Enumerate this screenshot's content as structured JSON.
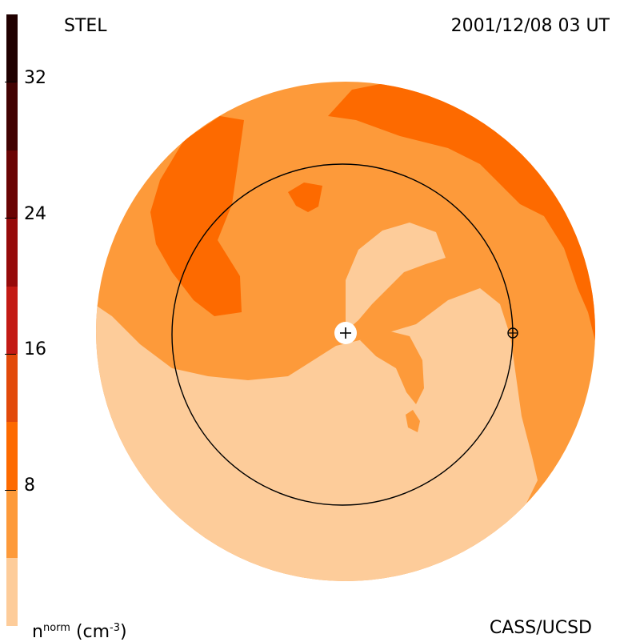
{
  "header": {
    "source": "STEL",
    "datetime": "2001/12/08 03 UT"
  },
  "footer": {
    "credit": "CASS/UCSD",
    "unit": {
      "base": "n",
      "superscript": "norm",
      "unit_text": "(cm",
      "unit_exp": "-3",
      "unit_close": ")"
    }
  },
  "colorbar": {
    "scale_min": 0,
    "scale_max": 36,
    "levels": [
      {
        "from": 0,
        "to": 4,
        "color": "#fdcc9a"
      },
      {
        "from": 4,
        "to": 8,
        "color": "#fd9a3a"
      },
      {
        "from": 8,
        "to": 12,
        "color": "#fd6a00"
      },
      {
        "from": 12,
        "to": 16,
        "color": "#e24a0a"
      },
      {
        "from": 16,
        "to": 20,
        "color": "#c31a14"
      },
      {
        "from": 20,
        "to": 24,
        "color": "#960a0a"
      },
      {
        "from": 24,
        "to": 28,
        "color": "#6a0404"
      },
      {
        "from": 28,
        "to": 32,
        "color": "#420202"
      },
      {
        "from": 32,
        "to": 36,
        "color": "#200000"
      }
    ],
    "ticks": [
      {
        "value": 8,
        "label": "8"
      },
      {
        "value": 16,
        "label": "16"
      },
      {
        "value": 24,
        "label": "24"
      },
      {
        "value": 32,
        "label": "32"
      }
    ]
  },
  "map": {
    "colors": {
      "low": "#fdcc9a",
      "mid": "#fd9a3a",
      "high": "#fd6a00"
    },
    "center_marker": "sun-plus-marker",
    "earth_marker": "earth-marker"
  }
}
